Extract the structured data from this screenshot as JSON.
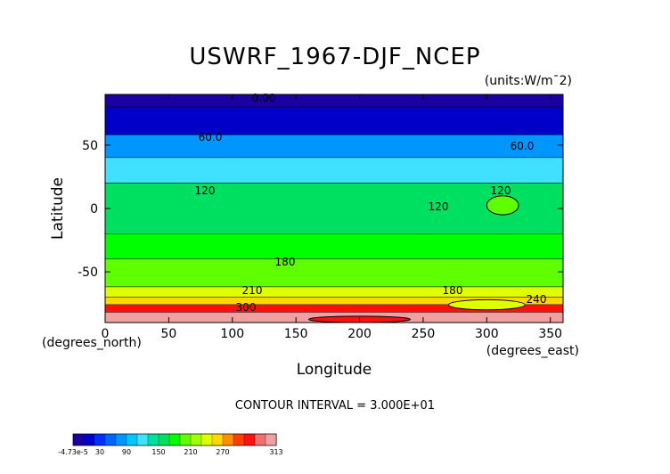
{
  "chart_data": {
    "type": "heatmap",
    "title": "USWRF_1967-DJF_NCEP",
    "units": "(units:W/m^2)",
    "units_display": "(units:W/m¯2)",
    "xlabel": "Longitude",
    "ylabel": "Latitude",
    "x_unit_note": "(degrees_east)",
    "y_unit_note": "(degrees_north)",
    "xlim": [
      0,
      360
    ],
    "ylim": [
      -90,
      90
    ],
    "x_ticks": [
      0,
      50,
      100,
      150,
      200,
      250,
      300,
      350
    ],
    "y_ticks": [
      50,
      0,
      -50
    ],
    "contour_interval_text": "CONTOUR INTERVAL = 3.000E+01",
    "contour_labels": [
      "0.00",
      "60.0",
      "60.0",
      "120",
      "120",
      "120",
      "180",
      "180",
      "210",
      "240",
      "300"
    ],
    "latitude_bands": [
      {
        "lat": [
          80,
          90
        ],
        "value": 0
      },
      {
        "lat": [
          58,
          80
        ],
        "value": 30
      },
      {
        "lat": [
          40,
          58
        ],
        "value": 75
      },
      {
        "lat": [
          20,
          40
        ],
        "value": 105
      },
      {
        "lat": [
          -20,
          20
        ],
        "value": 135
      },
      {
        "lat": [
          -40,
          -20
        ],
        "value": 150
      },
      {
        "lat": [
          -62,
          -40
        ],
        "value": 175
      },
      {
        "lat": [
          -70,
          -62
        ],
        "value": 200
      },
      {
        "lat": [
          -76,
          -70
        ],
        "value": 230
      },
      {
        "lat": [
          -82,
          -76
        ],
        "value": 270
      },
      {
        "lat": [
          -90,
          -82
        ],
        "value": 305
      }
    ],
    "patches": [
      {
        "lon": [
          300,
          325
        ],
        "lat": [
          -5,
          10
        ],
        "value": 180
      },
      {
        "lon": [
          270,
          330
        ],
        "lat": [
          -80,
          -72
        ],
        "value": 210
      },
      {
        "lon": [
          160,
          240
        ],
        "lat": [
          -90,
          -85
        ],
        "value": 270
      }
    ],
    "colorbar": {
      "ticks": [
        "-4.73e-5",
        "30",
        "90",
        "150",
        "210",
        "270",
        "313"
      ],
      "colors": [
        "#1a00a0",
        "#0000c8",
        "#0030ff",
        "#0064ff",
        "#0096ff",
        "#00c8ff",
        "#40e0ff",
        "#00e0a0",
        "#00e060",
        "#00ff00",
        "#60ff00",
        "#a0ff00",
        "#e0ff00",
        "#ffd800",
        "#ff9000",
        "#ff4000",
        "#ff1010",
        "#f07070",
        "#f0a0a0"
      ],
      "min": 0,
      "max": 313
    }
  }
}
